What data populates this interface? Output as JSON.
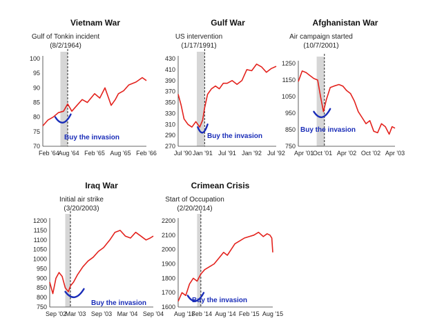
{
  "colors": {
    "series": "#e3211c",
    "annotation": "#1a2db8",
    "shade": "#d6d6d6",
    "axis": "#333333"
  },
  "chart_data": [
    {
      "type": "line",
      "title": "Vietnam War",
      "event": "Gulf of Tonkin incident",
      "event_date": "(8/2/1964)",
      "annotation": "Buy the invasion",
      "yticks": [
        "100",
        "95",
        "90",
        "85",
        "80",
        "75",
        "70"
      ],
      "ylim": [
        70,
        100
      ],
      "xticks": [
        "Feb '64",
        "Aug '64",
        "Feb '65",
        "Aug '65",
        "Feb '66"
      ],
      "x": [
        0,
        0.25,
        0.5,
        0.75,
        1
      ],
      "shade_range": [
        0.17,
        0.24
      ],
      "event_x": 0.24,
      "series": [
        {
          "x": [
            0,
            0.05,
            0.1,
            0.15,
            0.2,
            0.24,
            0.28,
            0.33,
            0.38,
            0.43,
            0.5,
            0.55,
            0.6,
            0.63,
            0.66,
            0.7,
            0.73,
            0.78,
            0.83,
            0.9,
            0.96,
            1
          ],
          "values": [
            77,
            79,
            80,
            81.5,
            82,
            84.5,
            82,
            84,
            86,
            85,
            88,
            86.5,
            90,
            87,
            84,
            86,
            88,
            89,
            91,
            92,
            93.5,
            92.5
          ]
        }
      ]
    },
    {
      "type": "line",
      "title": "Gulf War",
      "event": "US intervention",
      "event_date": "(1/17/1991)",
      "annotation": "Buy the invasion",
      "yticks": [
        "430",
        "410",
        "390",
        "370",
        "350",
        "330",
        "310",
        "290",
        "270"
      ],
      "ylim": [
        270,
        430
      ],
      "xticks": [
        "Jul '90",
        "Jan '91",
        "Jul '91",
        "Jan '92",
        "Jul '92"
      ],
      "x": [
        0,
        0.25,
        0.5,
        0.75,
        1
      ],
      "shade_range": [
        0.19,
        0.27
      ],
      "event_x": 0.27,
      "series": [
        {
          "x": [
            0,
            0.03,
            0.06,
            0.1,
            0.14,
            0.18,
            0.22,
            0.25,
            0.27,
            0.3,
            0.34,
            0.38,
            0.42,
            0.46,
            0.5,
            0.55,
            0.6,
            0.65,
            0.7,
            0.75,
            0.8,
            0.85,
            0.9,
            0.95,
            1
          ],
          "values": [
            365,
            345,
            320,
            310,
            305,
            315,
            305,
            318,
            340,
            365,
            375,
            380,
            375,
            385,
            385,
            390,
            383,
            390,
            410,
            408,
            420,
            415,
            405,
            412,
            416
          ]
        }
      ]
    },
    {
      "type": "line",
      "title": "Afghanistan War",
      "event": "Air campaign started",
      "event_date": "(10/7/2001)",
      "annotation": "Buy the invasion",
      "yticks": [
        "1250",
        "1150",
        "1050",
        "950",
        "850",
        "750"
      ],
      "ylim": [
        750,
        1300
      ],
      "xticks": [
        "Apr '01",
        "Oct '01",
        "Apr '02",
        "Oct '02",
        "Apr '03"
      ],
      "x": [
        0,
        0.25,
        0.5,
        0.75,
        1
      ],
      "shade_range": [
        0.19,
        0.27
      ],
      "event_x": 0.27,
      "series": [
        {
          "x": [
            0,
            0.04,
            0.08,
            0.12,
            0.16,
            0.2,
            0.23,
            0.26,
            0.29,
            0.33,
            0.37,
            0.42,
            0.46,
            0.5,
            0.54,
            0.58,
            0.62,
            0.66,
            0.7,
            0.74,
            0.78,
            0.82,
            0.86,
            0.9,
            0.94,
            0.97,
            1
          ],
          "values": [
            1180,
            1250,
            1240,
            1220,
            1200,
            1190,
            1080,
            980,
            1060,
            1140,
            1150,
            1160,
            1150,
            1120,
            1100,
            1050,
            980,
            940,
            900,
            920,
            850,
            840,
            900,
            880,
            830,
            880,
            870
          ]
        }
      ]
    },
    {
      "type": "line",
      "title": "Iraq War",
      "event": "Initial air strike",
      "event_date": "(3/20/2003)",
      "annotation": "Buy the invasion",
      "yticks": [
        "1200",
        "1150",
        "1100",
        "1050",
        "1000",
        "950",
        "900",
        "850",
        "800",
        "750"
      ],
      "ylim": [
        750,
        1200
      ],
      "xticks": [
        "Sep '02",
        "Mar '03",
        "Sep '03",
        "Mar '04",
        "Sep '04"
      ],
      "x": [
        0,
        0.25,
        0.5,
        0.75,
        1
      ],
      "shade_range": [
        0.15,
        0.2
      ],
      "event_x": 0.2,
      "series": [
        {
          "x": [
            0,
            0.03,
            0.06,
            0.09,
            0.12,
            0.15,
            0.18,
            0.2,
            0.23,
            0.27,
            0.32,
            0.37,
            0.42,
            0.47,
            0.52,
            0.58,
            0.63,
            0.68,
            0.73,
            0.78,
            0.83,
            0.88,
            0.93,
            0.97,
            1
          ],
          "values": [
            880,
            820,
            900,
            930,
            910,
            850,
            830,
            860,
            880,
            920,
            960,
            990,
            1010,
            1040,
            1060,
            1100,
            1140,
            1150,
            1120,
            1110,
            1140,
            1120,
            1100,
            1110,
            1120
          ]
        }
      ]
    },
    {
      "type": "line",
      "title": "Crimean Crisis",
      "event": "Start of Occupation",
      "event_date": "(2/20/2014)",
      "annotation": "Buy the invasion",
      "yticks": [
        "2200",
        "2100",
        "2000",
        "1900",
        "1800",
        "1700",
        "1600"
      ],
      "ylim": [
        1600,
        2200
      ],
      "xticks": [
        "Aug '13",
        "Feb '14",
        "Aug '14",
        "Feb '15",
        "Aug '15"
      ],
      "x": [
        0,
        0.25,
        0.5,
        0.75,
        1
      ],
      "shade_range": [
        0.2,
        0.24
      ],
      "event_x": 0.24,
      "series": [
        {
          "x": [
            0,
            0.04,
            0.08,
            0.12,
            0.16,
            0.2,
            0.24,
            0.28,
            0.33,
            0.38,
            0.43,
            0.48,
            0.52,
            0.56,
            0.6,
            0.65,
            0.7,
            0.75,
            0.8,
            0.85,
            0.9,
            0.94,
            0.97,
            0.99,
            1
          ],
          "values": [
            1640,
            1700,
            1680,
            1760,
            1800,
            1780,
            1830,
            1860,
            1880,
            1900,
            1940,
            1980,
            1960,
            2000,
            2040,
            2060,
            2080,
            2090,
            2100,
            2120,
            2090,
            2110,
            2100,
            2080,
            1980
          ]
        }
      ]
    }
  ]
}
